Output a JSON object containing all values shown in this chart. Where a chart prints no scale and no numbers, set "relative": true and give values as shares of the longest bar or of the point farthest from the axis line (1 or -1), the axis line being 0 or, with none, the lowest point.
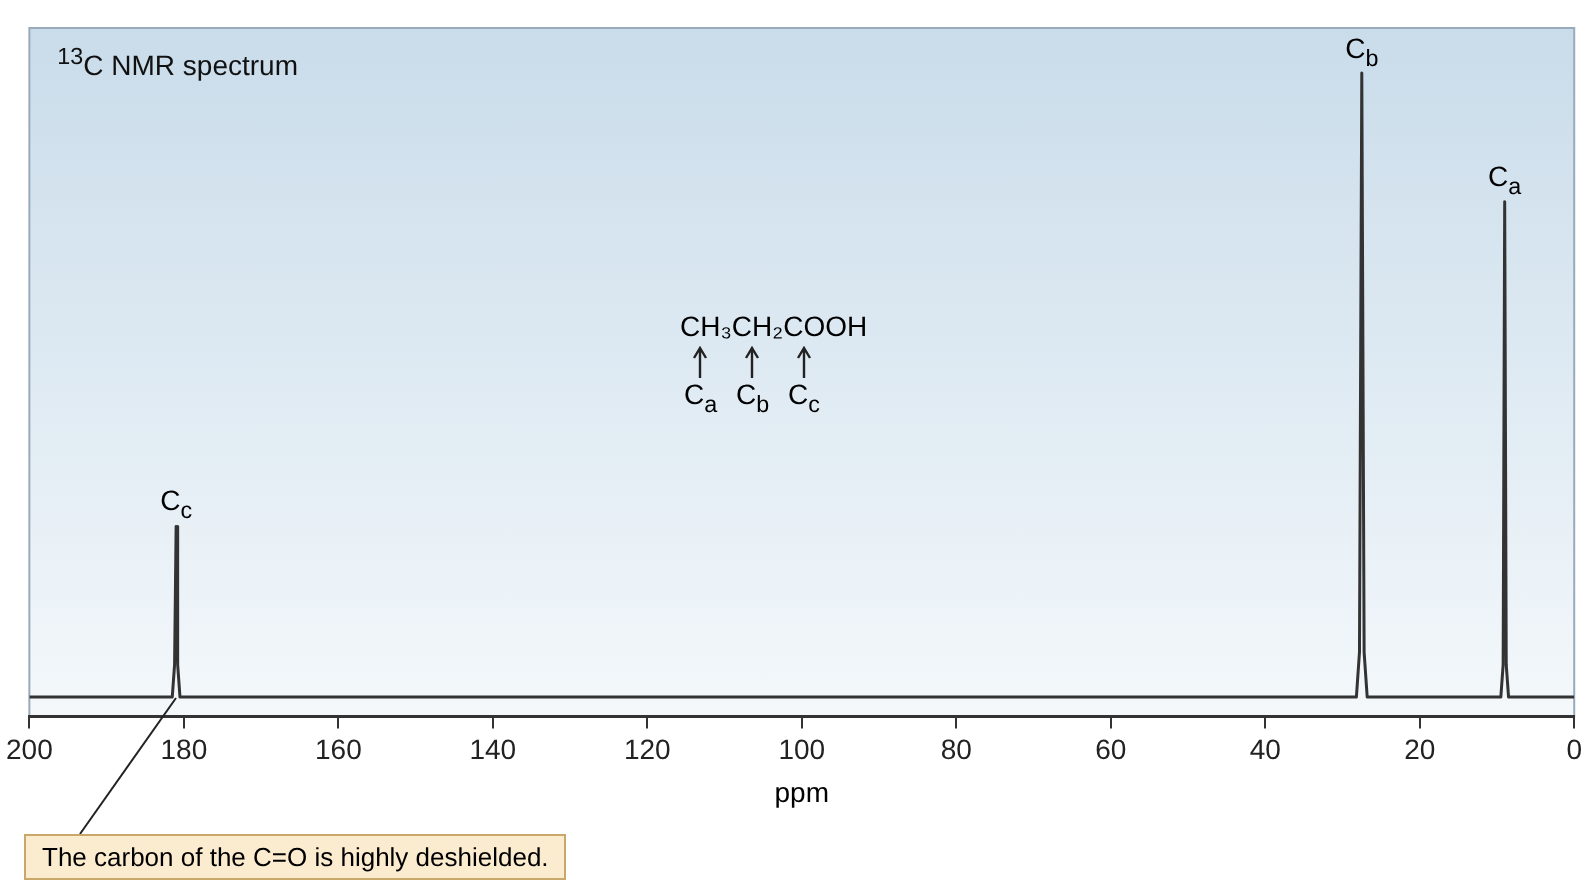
{
  "chart_data": {
    "type": "line",
    "title": "$^{13}$C NMR spectrum",
    "xlabel": "ppm",
    "relative": true,
    "color": "#333333",
    "legend": false,
    "grid": false,
    "marker": "none",
    "xlim": [
      200,
      0
    ],
    "xticks": [
      200,
      180,
      160,
      140,
      120,
      100,
      80,
      60,
      40,
      20,
      0
    ],
    "x": [
      200,
      181.5,
      181.2,
      181,
      180.8,
      180.5,
      28.2,
      27.8,
      27.5,
      27.2,
      26.8,
      9.5,
      9.2,
      9,
      8.8,
      8.5,
      0
    ],
    "values": [
      0.03,
      0.03,
      0.08,
      0.295,
      0.08,
      0.03,
      0.03,
      0.1,
      1,
      0.1,
      0.03,
      0.03,
      0.08,
      0.8,
      0.08,
      0.03,
      0.03
    ],
    "annotations": [
      {
        "text": "C$_{c}$",
        "x": 181,
        "y": 0.295
      },
      {
        "text": "C$_{b}$",
        "x": 27.5,
        "y": 1
      },
      {
        "text": "C$_{a}$",
        "x": 9,
        "y": 0.8
      },
      "CH₃CH₂COOH",
      "C$_{a}$",
      "C$_{b}$",
      "C$_{c}$",
      {
        "text": "The carbon of the C=O is highly deshielded.",
        "x": 181,
        "y": 0.03
      }
    ]
  }
}
